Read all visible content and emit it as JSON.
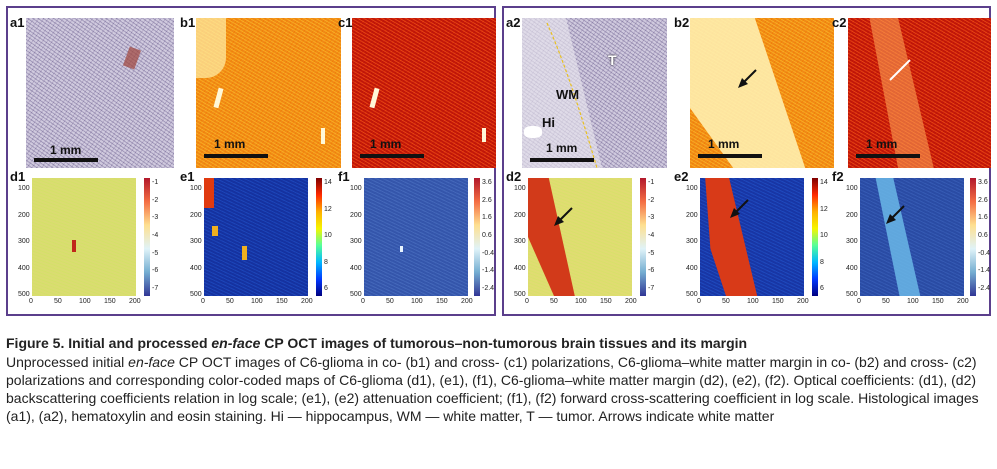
{
  "labels": {
    "a1": "a1",
    "b1": "b1",
    "c1": "c1",
    "d1": "d1",
    "e1": "e1",
    "f1": "f1",
    "a2": "a2",
    "b2": "b2",
    "c2": "c2",
    "d2": "d2",
    "e2": "e2",
    "f2": "f2"
  },
  "scale_label": "1 mm",
  "annotations": {
    "T": "T",
    "WM": "WM",
    "Hi": "Hi"
  },
  "axes": {
    "y_ticks": [
      "100",
      "200",
      "300",
      "400",
      "500"
    ],
    "x_ticks": [
      "0",
      "50",
      "100",
      "150",
      "200"
    ]
  },
  "colorbars": {
    "d": {
      "ticks": [
        "-1",
        "-2",
        "-3",
        "-4",
        "-5",
        "-6",
        "-7"
      ],
      "colormap": "RdYlBu_r"
    },
    "e": {
      "ticks": [
        "14",
        "12",
        "10",
        "8",
        "6"
      ],
      "colormap": "jet"
    },
    "f": {
      "ticks": [
        "3.6",
        "2.6",
        "1.6",
        "0.6",
        "-0.4",
        "-1.4",
        "-2.4"
      ],
      "colormap": "RdYlBu_r"
    }
  },
  "colors": {
    "frame": "#5b3f8c"
  },
  "caption": {
    "title_pre": "Figure 5. Initial and processed ",
    "title_em": "en-face",
    "title_post": " CP OCT images of tumorous–non-tumorous brain tissues and its margin",
    "body_pre": "Unprocessed initial ",
    "body_em": "en-face",
    "body_post": " CP OCT images of C6-glioma in co- (b1) and cross- (c1) polarizations, C6-glioma–white matter margin in co- (b2) and cross- (c2) polarizations and corresponding color-coded maps of C6-glioma (d1), (e1), (f1), C6-glioma–white matter margin (d2), (e2), (f2). Optical coefficients: (d1), (d2) backscattering coefficients relation in log scale; (e1), (e2) attenuation coefficient; (f1), (f2) forward cross-scattering coefficient in log scale. Histological images (a1), (a2), hematoxylin and eosin staining. Hi — hippocampus, WM — white matter, T — tumor. Arrows indicate white matter"
  }
}
